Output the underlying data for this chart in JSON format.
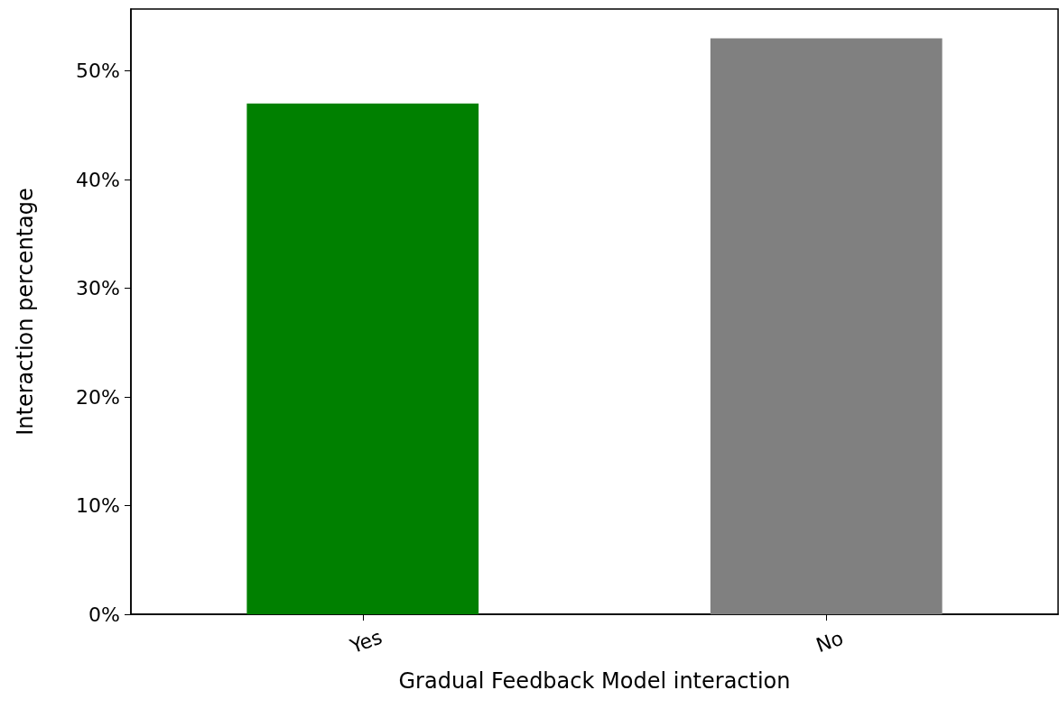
{
  "chart_data": {
    "type": "bar",
    "xlabel": "Gradual Feedback Model interaction",
    "ylabel": "Interaction percentage",
    "categories": [
      "Yes",
      "No"
    ],
    "values": [
      47,
      53
    ],
    "colors": [
      "#008000",
      "#808080"
    ],
    "ylim": [
      0,
      55.7
    ],
    "yticks": [
      {
        "value": 0,
        "label": "0%"
      },
      {
        "value": 10,
        "label": "10%"
      },
      {
        "value": 20,
        "label": "20%"
      },
      {
        "value": 30,
        "label": "30%"
      },
      {
        "value": 40,
        "label": "40%"
      },
      {
        "value": 50,
        "label": "50%"
      }
    ],
    "grid": false
  }
}
